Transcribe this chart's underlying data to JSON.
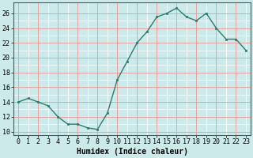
{
  "x": [
    0,
    1,
    2,
    3,
    4,
    5,
    6,
    7,
    8,
    9,
    10,
    11,
    12,
    13,
    14,
    15,
    16,
    17,
    18,
    19,
    20,
    21,
    22,
    23
  ],
  "y": [
    14.0,
    14.5,
    14.0,
    13.5,
    12.0,
    11.0,
    11.0,
    10.5,
    10.3,
    12.5,
    17.0,
    19.5,
    22.0,
    23.5,
    25.5,
    26.0,
    26.7,
    25.5,
    25.0,
    26.0,
    24.0,
    22.5,
    22.5,
    21.0
  ],
  "line_color": "#2d7a6e",
  "marker": "s",
  "marker_size": 2,
  "bg_color": "#cceaea",
  "minor_grid_color": "#ffffff",
  "major_grid_color": "#e8a0a0",
  "xlabel": "Humidex (Indice chaleur)",
  "xlim": [
    -0.5,
    23.5
  ],
  "ylim": [
    9.5,
    27.5
  ],
  "yticks": [
    10,
    12,
    14,
    16,
    18,
    20,
    22,
    24,
    26
  ],
  "xticks": [
    0,
    1,
    2,
    3,
    4,
    5,
    6,
    7,
    8,
    9,
    10,
    11,
    12,
    13,
    14,
    15,
    16,
    17,
    18,
    19,
    20,
    21,
    22,
    23
  ],
  "xlabel_fontsize": 7,
  "tick_fontsize": 6
}
